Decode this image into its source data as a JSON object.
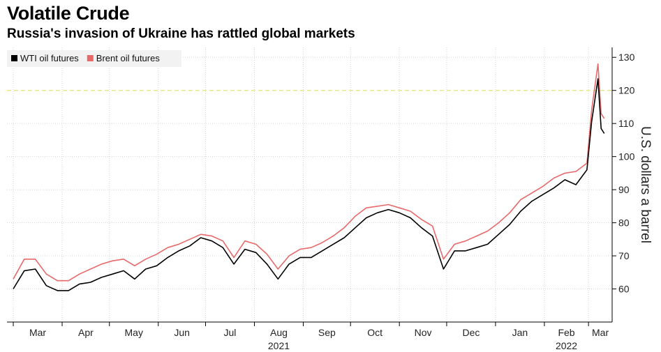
{
  "chart_data": {
    "type": "line",
    "title": "Volatile Crude",
    "subtitle": "Russia's invasion of Ukraine has rattled global markets",
    "ylabel": "U.S. dollars a barrel",
    "ylim": [
      50,
      133
    ],
    "yticks": [
      60,
      70,
      80,
      90,
      100,
      110,
      120,
      130
    ],
    "reference_line": {
      "y": 120,
      "color": "#e8e88a"
    },
    "x_tick_labels": [
      "Mar",
      "Apr",
      "May",
      "Jun",
      "Jul",
      "Aug",
      "Sep",
      "Oct",
      "Nov",
      "Dec",
      "Jan",
      "Feb",
      "Mar"
    ],
    "year_labels": [
      {
        "label": "2021",
        "at_month": "Aug"
      },
      {
        "label": "2022",
        "at_month": "Feb"
      }
    ],
    "x": [
      "2021-03-01",
      "2021-03-08",
      "2021-03-15",
      "2021-03-22",
      "2021-03-29",
      "2021-04-05",
      "2021-04-12",
      "2021-04-19",
      "2021-04-26",
      "2021-05-03",
      "2021-05-10",
      "2021-05-17",
      "2021-05-24",
      "2021-05-31",
      "2021-06-07",
      "2021-06-14",
      "2021-06-21",
      "2021-06-28",
      "2021-07-05",
      "2021-07-12",
      "2021-07-19",
      "2021-07-26",
      "2021-08-02",
      "2021-08-09",
      "2021-08-16",
      "2021-08-23",
      "2021-08-30",
      "2021-09-06",
      "2021-09-13",
      "2021-09-20",
      "2021-09-27",
      "2021-10-04",
      "2021-10-11",
      "2021-10-18",
      "2021-10-25",
      "2021-11-01",
      "2021-11-08",
      "2021-11-15",
      "2021-11-22",
      "2021-11-29",
      "2021-12-06",
      "2021-12-13",
      "2021-12-20",
      "2021-12-27",
      "2022-01-03",
      "2022-01-10",
      "2022-01-17",
      "2022-01-24",
      "2022-01-31",
      "2022-02-07",
      "2022-02-14",
      "2022-02-21",
      "2022-02-28",
      "2022-03-03",
      "2022-03-07",
      "2022-03-09",
      "2022-03-11"
    ],
    "series": [
      {
        "name": "WTI oil futures",
        "color": "#000000",
        "values": [
          60,
          65.5,
          66,
          61,
          59.5,
          59.5,
          61.5,
          62,
          63.5,
          64.5,
          65.5,
          63,
          66,
          67,
          69.5,
          71.5,
          73,
          75.5,
          74.5,
          72.5,
          67.5,
          72,
          71,
          67.5,
          63,
          67.5,
          69.5,
          69.5,
          71.5,
          73.5,
          75.5,
          78.5,
          81.5,
          83,
          84,
          83,
          81.5,
          78.5,
          76,
          66,
          71.5,
          71.5,
          72.5,
          73.5,
          76.5,
          79.5,
          83.5,
          86.5,
          88.5,
          90.5,
          93,
          91.5,
          96,
          110.5,
          123.5,
          108.5,
          107
        ]
      },
      {
        "name": "Brent oil futures",
        "color": "#e8696a",
        "values": [
          63,
          69,
          69,
          64.5,
          62.5,
          62.5,
          64.5,
          66,
          67.5,
          68.5,
          69,
          67,
          69,
          70.5,
          72.5,
          73.5,
          75,
          76.5,
          76,
          74.5,
          69.5,
          74.5,
          73.5,
          70.5,
          66,
          70,
          72,
          72.5,
          74,
          76,
          78.5,
          82,
          84.5,
          85,
          85.5,
          84.5,
          83.5,
          81,
          79,
          69,
          73.5,
          74.5,
          76,
          77.5,
          80,
          83,
          87,
          89,
          91,
          93.5,
          95,
          95.5,
          98,
          114,
          128,
          113,
          111.5
        ]
      }
    ],
    "legend_position": "top-left"
  }
}
